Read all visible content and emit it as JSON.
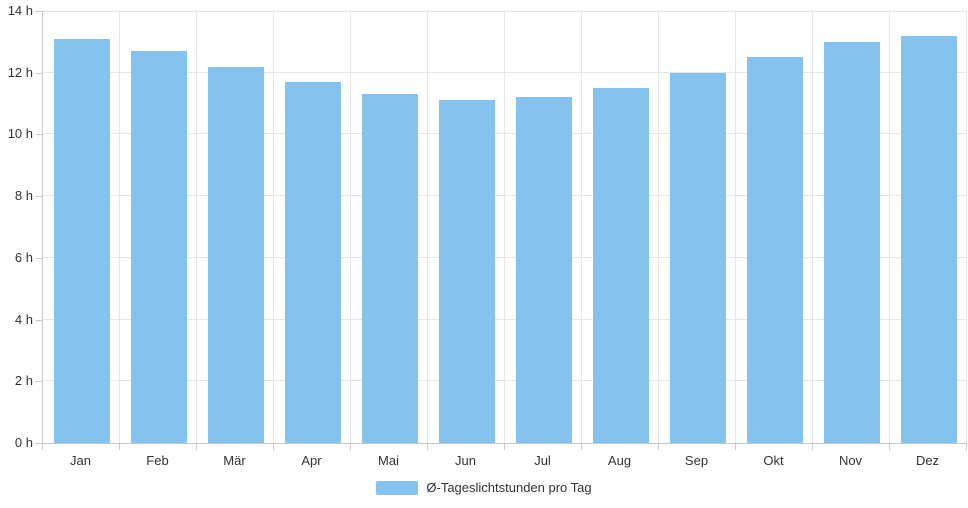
{
  "chart_data": {
    "type": "bar",
    "title": "",
    "categories": [
      "Jan",
      "Feb",
      "Mär",
      "Apr",
      "Mai",
      "Jun",
      "Jul",
      "Aug",
      "Sep",
      "Okt",
      "Nov",
      "Dez"
    ],
    "series": [
      {
        "name": "Ø-Tageslichtstunden pro Tag",
        "values": [
          13.1,
          12.7,
          12.2,
          11.7,
          11.3,
          11.1,
          11.2,
          11.5,
          12.0,
          12.5,
          13.0,
          13.2
        ]
      }
    ],
    "xlabel": "",
    "ylabel": "",
    "ylim": [
      0,
      14
    ],
    "y_ticks": [
      0,
      2,
      4,
      6,
      8,
      10,
      12,
      14
    ],
    "y_tick_suffix": " h",
    "grid": true,
    "legend_position": "bottom-center",
    "colors": {
      "bar": "#85C3EE",
      "gridline": "#E6E6E6",
      "axis": "#C8C8C8",
      "text": "#333333"
    }
  },
  "legend": {
    "label": "Ø-Tageslichtstunden pro Tag"
  }
}
